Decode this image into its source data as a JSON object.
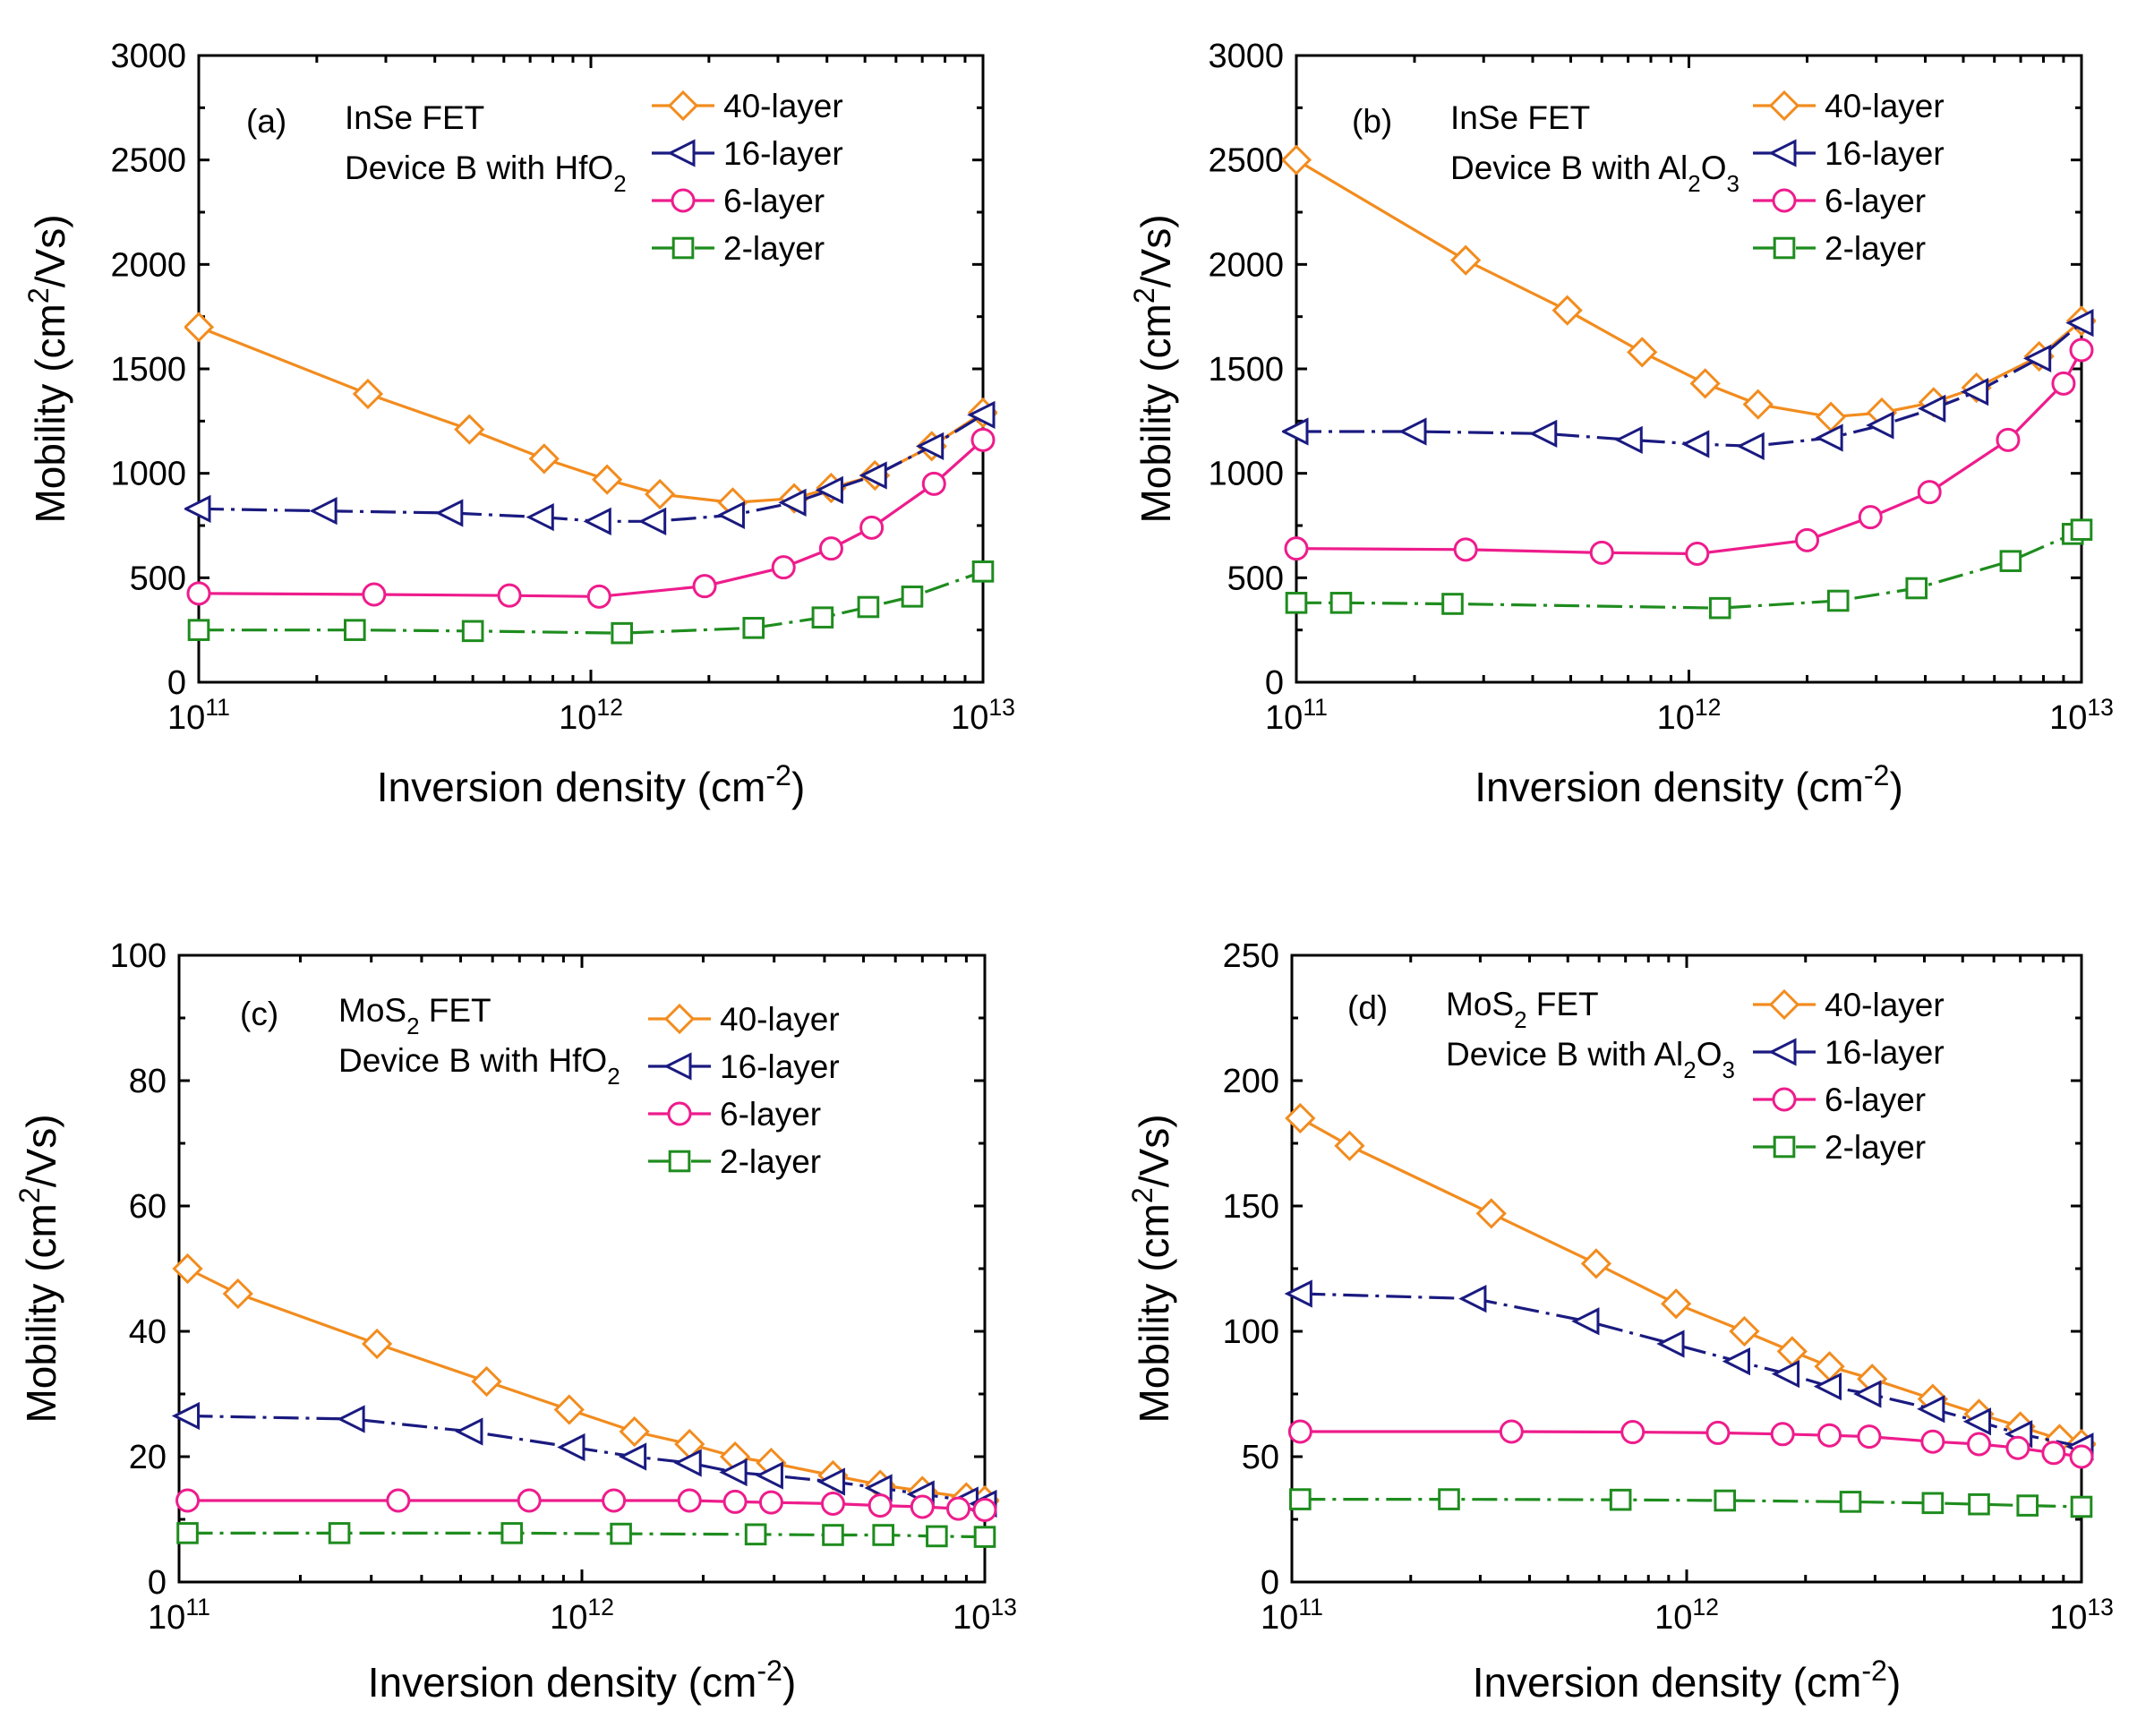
{
  "chart_data": [
    {
      "type": "line",
      "panel_id": "(a)",
      "annotation": {
        "line1": "InSe FET",
        "line2_prefix": "Device B with HfO",
        "line2_sub": "2",
        "line2_suffix": ""
      },
      "xlabel": {
        "base": "Inversion density (cm",
        "sup": "-2",
        "suffix": ")"
      },
      "ylabel": {
        "base": "Mobility (cm",
        "sup": "2",
        "suffix": "/Vs)"
      },
      "xscale": "log",
      "xlim": [
        100000000000.0,
        10000000000000.0
      ],
      "ylim": [
        0,
        3000
      ],
      "yticks": [
        0,
        500,
        1000,
        1500,
        2000,
        2500,
        3000
      ],
      "xticks": [
        {
          "base": "10",
          "exp": "11"
        },
        {
          "base": "10",
          "exp": "12"
        },
        {
          "base": "10",
          "exp": "13"
        }
      ],
      "legend_position": "top-right",
      "series": [
        {
          "name": "40-layer",
          "color": "#F28C1E",
          "marker": "diamond",
          "dash": "solid",
          "x": [
            100000000000.0,
            270000000000.0,
            490000000000.0,
            760000000000.0,
            1100000000000.0,
            1500000000000.0,
            2300000000000.0,
            3300000000000.0,
            4100000000000.0,
            5300000000000.0,
            7400000000000.0,
            10000000000000.0
          ],
          "y": [
            1700,
            1380,
            1210,
            1070,
            970,
            900,
            860,
            880,
            930,
            990,
            1130,
            1290
          ]
        },
        {
          "name": "16-layer",
          "color": "#1A1A80",
          "marker": "triangle-left",
          "dash": "dashdot",
          "x": [
            100000000000.0,
            210000000000.0,
            440000000000.0,
            750000000000.0,
            1050000000000.0,
            1450000000000.0,
            2300000000000.0,
            3300000000000.0,
            4100000000000.0,
            5300000000000.0,
            7400000000000.0,
            10000000000000.0
          ],
          "y": [
            830,
            820,
            810,
            790,
            770,
            770,
            800,
            860,
            920,
            990,
            1130,
            1280
          ]
        },
        {
          "name": "6-layer",
          "color": "#EE1C8C",
          "marker": "circle",
          "dash": "solid",
          "x": [
            100000000000.0,
            280000000000.0,
            620000000000.0,
            1050000000000.0,
            1950000000000.0,
            3100000000000.0,
            4100000000000.0,
            5200000000000.0,
            7500000000000.0,
            10000000000000.0
          ],
          "y": [
            425,
            420,
            415,
            410,
            460,
            550,
            640,
            740,
            950,
            1160
          ]
        },
        {
          "name": "2-layer",
          "color": "#1E8C1E",
          "marker": "square",
          "dash": "dashdot",
          "x": [
            100000000000.0,
            250000000000.0,
            500000000000.0,
            1200000000000.0,
            2600000000000.0,
            3900000000000.0,
            5100000000000.0,
            6600000000000.0,
            10000000000000.0
          ],
          "y": [
            250,
            250,
            245,
            235,
            260,
            310,
            360,
            410,
            530
          ]
        }
      ]
    },
    {
      "type": "line",
      "panel_id": "(b)",
      "annotation": {
        "line1": "InSe FET",
        "line2_prefix": "Device B with Al",
        "line2_sub": "2",
        "line2_suffix": "O",
        "line2_sub2": "3"
      },
      "xlabel": {
        "base": "Inversion density (cm",
        "sup": "-2",
        "suffix": ")"
      },
      "ylabel": {
        "base": "Mobility (cm",
        "sup": "2",
        "suffix": "/Vs)"
      },
      "xscale": "log",
      "xlim": [
        100000000000.0,
        10000000000000.0
      ],
      "ylim": [
        0,
        3000
      ],
      "yticks": [
        0,
        500,
        1000,
        1500,
        2000,
        2500,
        3000
      ],
      "xticks": [
        {
          "base": "10",
          "exp": "11"
        },
        {
          "base": "10",
          "exp": "12"
        },
        {
          "base": "10",
          "exp": "13"
        }
      ],
      "legend_position": "top-right",
      "series": [
        {
          "name": "40-layer",
          "color": "#F28C1E",
          "marker": "diamond",
          "dash": "solid",
          "x": [
            100000000000.0,
            270000000000.0,
            490000000000.0,
            760000000000.0,
            1100000000000.0,
            1500000000000.0,
            2300000000000.0,
            3100000000000.0,
            4200000000000.0,
            5400000000000.0,
            7800000000000.0,
            10000000000000.0
          ],
          "y": [
            2500,
            2020,
            1780,
            1580,
            1430,
            1330,
            1270,
            1290,
            1340,
            1410,
            1560,
            1730
          ]
        },
        {
          "name": "16-layer",
          "color": "#1A1A80",
          "marker": "triangle-left",
          "dash": "dashdot",
          "x": [
            100000000000.0,
            200000000000.0,
            430000000000.0,
            710000000000.0,
            1050000000000.0,
            1450000000000.0,
            2300000000000.0,
            3100000000000.0,
            4200000000000.0,
            5400000000000.0,
            7800000000000.0,
            10000000000000.0
          ],
          "y": [
            1200,
            1200,
            1190,
            1160,
            1140,
            1130,
            1170,
            1230,
            1310,
            1390,
            1550,
            1720
          ]
        },
        {
          "name": "6-layer",
          "color": "#EE1C8C",
          "marker": "circle",
          "dash": "solid",
          "x": [
            100000000000.0,
            270000000000.0,
            600000000000.0,
            1050000000000.0,
            2000000000000.0,
            2900000000000.0,
            4100000000000.0,
            6500000000000.0,
            9000000000000.0,
            10000000000000.0
          ],
          "y": [
            640,
            635,
            620,
            615,
            680,
            790,
            910,
            1160,
            1430,
            1590
          ]
        },
        {
          "name": "2-layer",
          "color": "#1E8C1E",
          "marker": "square",
          "dash": "dashdot",
          "x": [
            100000000000.0,
            130000000000.0,
            250000000000.0,
            1200000000000.0,
            2400000000000.0,
            3800000000000.0,
            6600000000000.0,
            9500000000000.0,
            10000000000000.0
          ],
          "y": [
            380,
            380,
            375,
            355,
            390,
            450,
            580,
            710,
            730
          ]
        }
      ]
    },
    {
      "type": "line",
      "panel_id": "(c)",
      "annotation": {
        "line1_prefix": "MoS",
        "line1_sub": "2",
        "line1_suffix": " FET",
        "line2_prefix": "Device B with HfO",
        "line2_sub": "2",
        "line2_suffix": ""
      },
      "xlabel": {
        "base": "Inversion density (cm",
        "sup": "-2",
        "suffix": ")"
      },
      "ylabel": {
        "base": "Mobility (cm",
        "sup": "2",
        "suffix": "/Vs)"
      },
      "xscale": "log",
      "xlim": [
        100000000000.0,
        10000000000000.0
      ],
      "ylim": [
        0,
        100
      ],
      "yticks": [
        0,
        20,
        40,
        60,
        80,
        100
      ],
      "xticks": [
        {
          "base": "10",
          "exp": "11"
        },
        {
          "base": "10",
          "exp": "12"
        },
        {
          "base": "10",
          "exp": "13"
        }
      ],
      "legend_position": "top-right",
      "series": [
        {
          "name": "40-layer",
          "color": "#F28C1E",
          "marker": "diamond",
          "dash": "solid",
          "x": [
            105000000000.0,
            140000000000.0,
            310000000000.0,
            580000000000.0,
            930000000000.0,
            1350000000000.0,
            1850000000000.0,
            2400000000000.0,
            2950000000000.0,
            4200000000000.0,
            5500000000000.0,
            7000000000000.0,
            9000000000000.0,
            10000000000000.0
          ],
          "y": [
            50,
            46,
            38,
            32,
            27.5,
            24,
            22,
            20,
            19,
            17,
            15.5,
            14.5,
            13.5,
            13
          ]
        },
        {
          "name": "16-layer",
          "color": "#1A1A80",
          "marker": "triangle-left",
          "dash": "dashdot",
          "x": [
            105000000000.0,
            270000000000.0,
            530000000000.0,
            950000000000.0,
            1350000000000.0,
            1850000000000.0,
            2400000000000.0,
            2950000000000.0,
            4200000000000.0,
            5500000000000.0,
            7000000000000.0,
            9000000000000.0,
            10000000000000.0
          ],
          "y": [
            26.5,
            26,
            24,
            21.5,
            20,
            19,
            17.5,
            17,
            16,
            15,
            14,
            13,
            12.5
          ]
        },
        {
          "name": "6-layer",
          "color": "#EE1C8C",
          "marker": "circle",
          "dash": "solid",
          "x": [
            105000000000.0,
            350000000000.0,
            740000000000.0,
            1200000000000.0,
            1850000000000.0,
            2400000000000.0,
            2950000000000.0,
            4200000000000.0,
            5500000000000.0,
            7000000000000.0,
            8600000000000.0,
            10000000000000.0
          ],
          "y": [
            13,
            13,
            13,
            13,
            13,
            12.8,
            12.7,
            12.5,
            12.2,
            12,
            11.7,
            11.5
          ]
        },
        {
          "name": "2-layer",
          "color": "#1E8C1E",
          "marker": "square",
          "dash": "dashdot",
          "x": [
            105000000000.0,
            250000000000.0,
            670000000000.0,
            1250000000000.0,
            2700000000000.0,
            4200000000000.0,
            5600000000000.0,
            7600000000000.0,
            10000000000000.0
          ],
          "y": [
            7.8,
            7.8,
            7.8,
            7.7,
            7.6,
            7.5,
            7.5,
            7.3,
            7.2
          ]
        }
      ]
    },
    {
      "type": "line",
      "panel_id": "(d)",
      "annotation": {
        "line1_prefix": "MoS",
        "line1_sub": "2",
        "line1_suffix": " FET",
        "line2_prefix": "Device B with Al",
        "line2_sub": "2",
        "line2_suffix": "O",
        "line2_sub2": "3"
      },
      "xlabel": {
        "base": "Inversion density (cm",
        "sup": "-2",
        "suffix": ")"
      },
      "ylabel": {
        "base": "Mobility (cm",
        "sup": "2",
        "suffix": "/Vs)"
      },
      "xscale": "log",
      "xlim": [
        100000000000.0,
        10000000000000.0
      ],
      "ylim": [
        0,
        250
      ],
      "yticks": [
        0,
        50,
        100,
        150,
        200,
        250
      ],
      "xticks": [
        {
          "base": "10",
          "exp": "11"
        },
        {
          "base": "10",
          "exp": "12"
        },
        {
          "base": "10",
          "exp": "13"
        }
      ],
      "legend_position": "top-right",
      "series": [
        {
          "name": "40-layer",
          "color": "#F28C1E",
          "marker": "diamond",
          "dash": "solid",
          "x": [
            105000000000.0,
            140000000000.0,
            320000000000.0,
            590000000000.0,
            940000000000.0,
            1400000000000.0,
            1850000000000.0,
            2300000000000.0,
            2950000000000.0,
            4200000000000.0,
            5500000000000.0,
            7000000000000.0,
            8800000000000.0,
            10000000000000.0
          ],
          "y": [
            185,
            174,
            147,
            127,
            111,
            100,
            92,
            86,
            81,
            73,
            67,
            62,
            57,
            55
          ]
        },
        {
          "name": "16-layer",
          "color": "#1A1A80",
          "marker": "triangle-left",
          "dash": "dashdot",
          "x": [
            105000000000.0,
            290000000000.0,
            560000000000.0,
            920000000000.0,
            1350000000000.0,
            1800000000000.0,
            2300000000000.0,
            2900000000000.0,
            4200000000000.0,
            5500000000000.0,
            7000000000000.0,
            10000000000000.0
          ],
          "y": [
            115,
            113,
            104,
            95,
            88,
            83,
            78,
            75,
            69,
            64,
            59,
            54
          ]
        },
        {
          "name": "6-layer",
          "color": "#EE1C8C",
          "marker": "circle",
          "dash": "solid",
          "x": [
            105000000000.0,
            360000000000.0,
            730000000000.0,
            1200000000000.0,
            1750000000000.0,
            2300000000000.0,
            2900000000000.0,
            4200000000000.0,
            5500000000000.0,
            6900000000000.0,
            8500000000000.0,
            10000000000000.0
          ],
          "y": [
            60,
            60,
            59.8,
            59.5,
            59,
            58.5,
            58,
            56,
            55,
            53.5,
            51.5,
            50
          ]
        },
        {
          "name": "2-layer",
          "color": "#1E8C1E",
          "marker": "square",
          "dash": "dashdot",
          "x": [
            105000000000.0,
            250000000000.0,
            680000000000.0,
            1250000000000.0,
            2600000000000.0,
            4200000000000.0,
            5500000000000.0,
            7300000000000.0,
            10000000000000.0
          ],
          "y": [
            33,
            33,
            32.8,
            32.5,
            32,
            31.5,
            31,
            30.5,
            30
          ]
        }
      ]
    }
  ]
}
